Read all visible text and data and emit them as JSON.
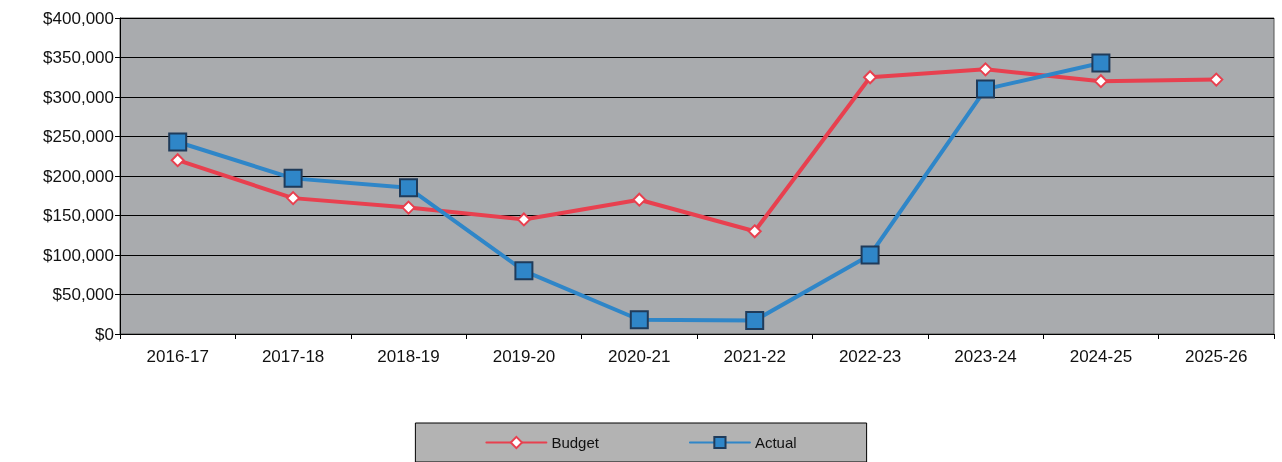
{
  "chart_data": {
    "type": "line",
    "categories": [
      "2016-17",
      "2017-18",
      "2018-19",
      "2019-20",
      "2020-21",
      "2021-22",
      "2022-23",
      "2023-24",
      "2024-25",
      "2025-26"
    ],
    "series": [
      {
        "name": "Budget",
        "color": "#e8404f",
        "marker": "diamond",
        "values": [
          220000,
          172000,
          160000,
          145000,
          170000,
          130000,
          325000,
          335000,
          320000,
          322000
        ]
      },
      {
        "name": "Actual",
        "color": "#2f86c8",
        "marker": "square",
        "values": [
          243000,
          197000,
          185000,
          80000,
          18000,
          17000,
          100000,
          310000,
          343000,
          null
        ]
      }
    ],
    "ylim": [
      0,
      400000
    ],
    "yticks": [
      {
        "value": 0,
        "label": "$0"
      },
      {
        "value": 50000,
        "label": "$50,000"
      },
      {
        "value": 100000,
        "label": "$100,000"
      },
      {
        "value": 150000,
        "label": "$150,000"
      },
      {
        "value": 200000,
        "label": "$200,000"
      },
      {
        "value": 250000,
        "label": "$250,000"
      },
      {
        "value": 300000,
        "label": "$300,000"
      },
      {
        "value": 350000,
        "label": "$350,000"
      },
      {
        "value": 400000,
        "label": "$400,000"
      }
    ],
    "grid": "y",
    "legend": "bottom"
  }
}
